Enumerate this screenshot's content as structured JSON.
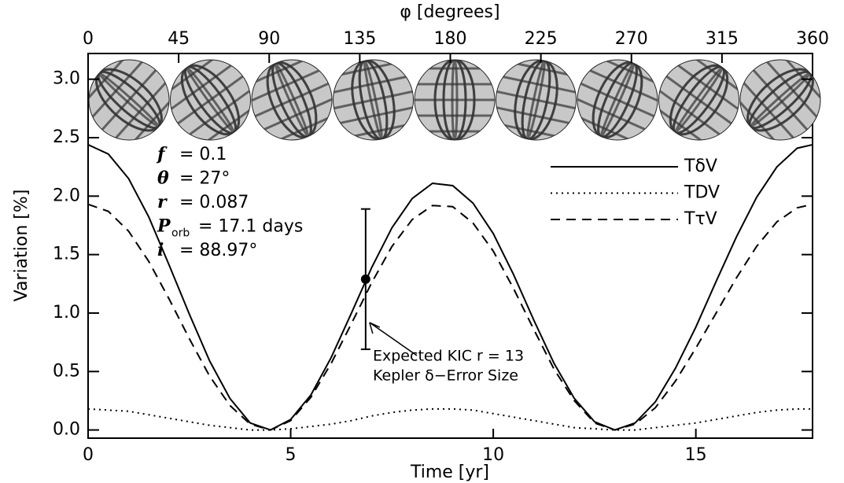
{
  "chart_data": {
    "type": "line",
    "title": "φ [degrees]",
    "x_label": "Time [yr]",
    "y_label": "Variation [%]",
    "x": [
      0,
      0.5,
      1,
      1.5,
      2,
      2.5,
      3,
      3.5,
      4,
      4.5,
      5,
      5.5,
      6,
      6.5,
      7,
      7.5,
      8,
      8.5,
      9,
      9.5,
      10,
      10.5,
      11,
      11.5,
      12,
      12.5,
      13,
      13.5,
      14,
      14.5,
      15,
      15.5,
      16,
      16.5,
      17,
      17.5,
      17.88
    ],
    "series": [
      {
        "name": "TδV",
        "color": "#000000",
        "dash": "solid",
        "values": [
          2.44,
          2.36,
          2.15,
          1.82,
          1.41,
          0.99,
          0.59,
          0.27,
          0.06,
          0.0,
          0.09,
          0.3,
          0.62,
          1.0,
          1.39,
          1.73,
          1.98,
          2.11,
          2.09,
          1.94,
          1.68,
          1.33,
          0.94,
          0.57,
          0.27,
          0.07,
          0.0,
          0.06,
          0.24,
          0.53,
          0.88,
          1.27,
          1.65,
          1.99,
          2.25,
          2.41,
          2.44
        ]
      },
      {
        "name": "TDV",
        "color": "#000000",
        "dash": "dotted",
        "values": [
          0.18,
          0.17,
          0.16,
          0.13,
          0.1,
          0.07,
          0.04,
          0.02,
          0.0,
          0.0,
          0.01,
          0.03,
          0.05,
          0.08,
          0.12,
          0.15,
          0.17,
          0.18,
          0.18,
          0.17,
          0.14,
          0.11,
          0.08,
          0.05,
          0.02,
          0.01,
          0.0,
          0.0,
          0.02,
          0.04,
          0.06,
          0.09,
          0.12,
          0.15,
          0.17,
          0.18,
          0.18
        ]
      },
      {
        "name": "TτV",
        "color": "#000000",
        "dash": "dashed",
        "values": [
          1.93,
          1.87,
          1.7,
          1.44,
          1.12,
          0.78,
          0.46,
          0.21,
          0.05,
          0.0,
          0.08,
          0.28,
          0.57,
          0.91,
          1.26,
          1.57,
          1.8,
          1.92,
          1.91,
          1.77,
          1.53,
          1.21,
          0.86,
          0.52,
          0.25,
          0.06,
          0.0,
          0.05,
          0.19,
          0.42,
          0.7,
          1.0,
          1.3,
          1.57,
          1.78,
          1.9,
          1.93
        ]
      }
    ],
    "error_point": {
      "x": 6.85,
      "value": 1.29,
      "error": 0.6,
      "labels": [
        "Expected KIC r = 13",
        "Kepler δ−Error Size"
      ]
    },
    "parameters": [
      {
        "symbol": "f",
        "text": "= 0.1"
      },
      {
        "symbol": "θ",
        "text": "= 27°"
      },
      {
        "symbol": "r",
        "text": "= 0.087"
      },
      {
        "symbol": "P",
        "sub": "orb",
        "text": "= 17.1 days"
      },
      {
        "symbol": "i",
        "text": "= 88.97°"
      }
    ],
    "xlim": [
      0,
      17.88
    ],
    "xticks": [
      0,
      5,
      10,
      15
    ],
    "x2lim": [
      0,
      360
    ],
    "x2ticks": [
      0,
      45,
      90,
      135,
      180,
      225,
      270,
      315,
      360
    ],
    "ylim": [
      -0.07,
      3.22
    ],
    "yticks": [
      {
        "value": 0,
        "label": "0.0"
      },
      0.5,
      {
        "value": 1,
        "label": "1.0"
      },
      1.5,
      {
        "value": 2,
        "label": "2.0"
      },
      2.5,
      {
        "value": 3,
        "label": "3.0"
      }
    ],
    "legend": "upper right",
    "grid": false
  }
}
